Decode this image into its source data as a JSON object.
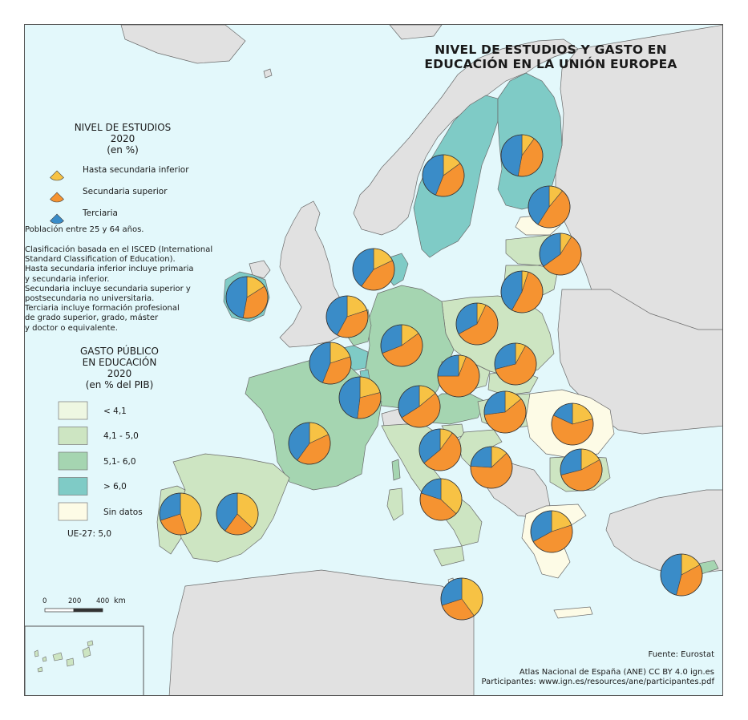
{
  "title": {
    "line1": "NIVEL DE ESTUDIOS Y GASTO EN",
    "line2": "EDUCACIÓN EN LA UNIÓN EUROPEA"
  },
  "legend_pie": {
    "heading1": "NIVEL DE ESTUDIOS",
    "heading2": "2020",
    "heading3": "(en %)",
    "items": [
      {
        "label": "Hasta secundaria inferior",
        "color": "#f7c244"
      },
      {
        "label": "Secundaria superior",
        "color": "#f59331"
      },
      {
        "label": "Terciaria",
        "color": "#3a8cc8"
      }
    ]
  },
  "notes": {
    "population": "Población entre 25 y 64 años.",
    "isced": [
      "Clasificación basada en el ISCED (International",
      "Standard Classification of Education).",
      "Hasta secundaria inferior incluye primaria",
      "y secundaria inferior.",
      "Secundaria incluye secundaria superior y",
      "postsecundaria no universitaria.",
      "Terciaria incluye formación profesional",
      "de grado superior, grado, máster",
      "y doctor o equivalente."
    ]
  },
  "legend_spend": {
    "heading1": "GASTO PÚBLICO",
    "heading2": "EN EDUCACIÓN",
    "heading3": "2020",
    "heading4": "(en % del PIB)",
    "items": [
      {
        "label": "< 4,1",
        "color": "#eef7e2"
      },
      {
        "label": "4,1 - 5,0",
        "color": "#cde5c2"
      },
      {
        "label": "5,1- 6,0",
        "color": "#a5d5b1"
      },
      {
        "label": "> 6,0",
        "color": "#7fcbc6"
      },
      {
        "label": "Sin datos",
        "color": "#fdfbe6"
      }
    ],
    "eu_average": "UE-27: 5,0"
  },
  "scale_bar": {
    "label0": "0",
    "label200": "200",
    "label400": "400",
    "unit": "km"
  },
  "source": "Fuente: Eurostat",
  "credits": {
    "line1": "Atlas Nacional de España (ANE) CC BY 4.0 ign.es",
    "line2": "Participantes: www.ign.es/resources/ane/participantes.pdf"
  },
  "colors": {
    "sea": "#e3f8fb",
    "non_eu_land": "#e1e1e1",
    "border": "#6a6a6a"
  },
  "pies": [
    {
      "id": "ireland",
      "values": [
        16,
        37,
        47
      ]
    },
    {
      "id": "portugal",
      "values": [
        45,
        25,
        30
      ]
    },
    {
      "id": "spain",
      "values": [
        37,
        23,
        40
      ]
    },
    {
      "id": "france",
      "values": [
        18,
        42,
        40
      ]
    },
    {
      "id": "belgium",
      "values": [
        20,
        36,
        44
      ]
    },
    {
      "id": "netherlands",
      "values": [
        20,
        38,
        42
      ]
    },
    {
      "id": "luxembourg",
      "values": [
        21,
        31,
        48
      ]
    },
    {
      "id": "denmark",
      "values": [
        18,
        42,
        40
      ]
    },
    {
      "id": "germany",
      "values": [
        15,
        54,
        31
      ]
    },
    {
      "id": "sweden",
      "values": [
        15,
        41,
        44
      ]
    },
    {
      "id": "finland",
      "values": [
        10,
        43,
        47
      ]
    },
    {
      "id": "estonia",
      "values": [
        11,
        48,
        41
      ]
    },
    {
      "id": "latvia",
      "values": [
        9,
        56,
        35
      ]
    },
    {
      "id": "lithuania",
      "values": [
        5,
        53,
        42
      ]
    },
    {
      "id": "poland",
      "values": [
        7,
        60,
        33
      ]
    },
    {
      "id": "czechia",
      "values": [
        6,
        69,
        25
      ]
    },
    {
      "id": "slovakia",
      "values": [
        8,
        63,
        29
      ]
    },
    {
      "id": "austria",
      "values": [
        14,
        52,
        34
      ]
    },
    {
      "id": "hungary",
      "values": [
        14,
        59,
        27
      ]
    },
    {
      "id": "slovenia",
      "values": [
        10,
        54,
        36
      ]
    },
    {
      "id": "croatia",
      "values": [
        13,
        63,
        24
      ]
    },
    {
      "id": "romania",
      "values": [
        21,
        61,
        18
      ]
    },
    {
      "id": "bulgaria",
      "values": [
        17,
        54,
        29
      ]
    },
    {
      "id": "italy",
      "values": [
        37,
        43,
        20
      ]
    },
    {
      "id": "greece",
      "values": [
        20,
        47,
        33
      ]
    },
    {
      "id": "malta",
      "values": [
        40,
        30,
        30
      ]
    },
    {
      "id": "cyprus",
      "values": [
        17,
        37,
        46
      ]
    }
  ]
}
